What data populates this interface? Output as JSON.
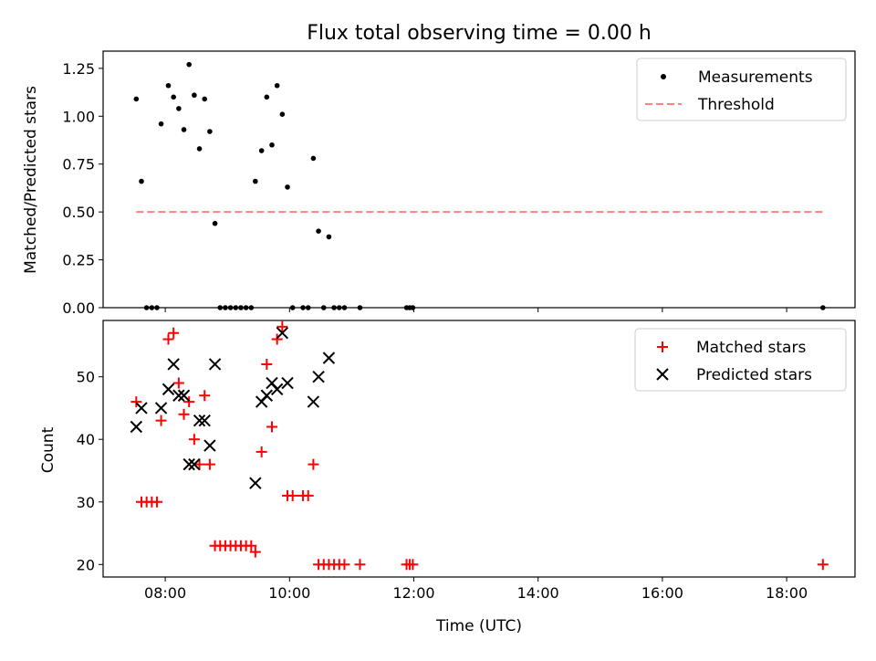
{
  "chart_data": [
    {
      "type": "scatter",
      "title": "Flux total observing time = 0.00 h",
      "xlabel": "",
      "ylabel": "Matched/Predicted stars",
      "xlim": [
        "07:00",
        "19:06"
      ],
      "ylim": [
        0,
        1.34
      ],
      "xticks": [
        "08:00",
        "10:00",
        "12:00",
        "14:00",
        "16:00",
        "18:00"
      ],
      "yticks": [
        "0.00",
        "0.25",
        "0.50",
        "0.75",
        "1.00",
        "1.25"
      ],
      "legend": {
        "placement": "top-right",
        "entries": [
          "Measurements",
          "Threshold"
        ]
      },
      "threshold": {
        "name": "Threshold",
        "y": 0.5,
        "x": [
          "07:32",
          "18:35"
        ],
        "color": "#ff8080"
      },
      "series": [
        {
          "name": "Measurements",
          "marker": "dot",
          "color": "#000000",
          "points": [
            {
              "x": "07:32",
              "y": 1.09
            },
            {
              "x": "07:37",
              "y": 0.66
            },
            {
              "x": "07:42",
              "y": 0.0
            },
            {
              "x": "07:47",
              "y": 0.0
            },
            {
              "x": "07:52",
              "y": 0.0
            },
            {
              "x": "07:56",
              "y": 0.96
            },
            {
              "x": "08:03",
              "y": 1.16
            },
            {
              "x": "08:08",
              "y": 1.1
            },
            {
              "x": "08:13",
              "y": 1.04
            },
            {
              "x": "08:18",
              "y": 0.93
            },
            {
              "x": "08:23",
              "y": 1.27
            },
            {
              "x": "08:28",
              "y": 1.11
            },
            {
              "x": "08:33",
              "y": 0.83
            },
            {
              "x": "08:38",
              "y": 1.09
            },
            {
              "x": "08:43",
              "y": 0.92
            },
            {
              "x": "08:48",
              "y": 0.44
            },
            {
              "x": "08:53",
              "y": 0.0
            },
            {
              "x": "08:58",
              "y": 0.0
            },
            {
              "x": "09:03",
              "y": 0.0
            },
            {
              "x": "09:08",
              "y": 0.0
            },
            {
              "x": "09:13",
              "y": 0.0
            },
            {
              "x": "09:18",
              "y": 0.0
            },
            {
              "x": "09:23",
              "y": 0.0
            },
            {
              "x": "09:27",
              "y": 0.66
            },
            {
              "x": "09:33",
              "y": 0.82
            },
            {
              "x": "09:38",
              "y": 1.1
            },
            {
              "x": "09:43",
              "y": 0.85
            },
            {
              "x": "09:48",
              "y": 1.16
            },
            {
              "x": "09:53",
              "y": 1.01
            },
            {
              "x": "09:58",
              "y": 0.63
            },
            {
              "x": "10:03",
              "y": 0.0
            },
            {
              "x": "10:13",
              "y": 0.0
            },
            {
              "x": "10:18",
              "y": 0.0
            },
            {
              "x": "10:23",
              "y": 0.78
            },
            {
              "x": "10:28",
              "y": 0.4
            },
            {
              "x": "10:33",
              "y": 0.0
            },
            {
              "x": "10:38",
              "y": 0.37
            },
            {
              "x": "10:43",
              "y": 0.0
            },
            {
              "x": "10:48",
              "y": 0.0
            },
            {
              "x": "10:53",
              "y": 0.0
            },
            {
              "x": "11:08",
              "y": 0.0
            },
            {
              "x": "11:53",
              "y": 0.0
            },
            {
              "x": "11:56",
              "y": 0.0
            },
            {
              "x": "11:59",
              "y": 0.0
            },
            {
              "x": "18:35",
              "y": 0.0
            }
          ]
        }
      ]
    },
    {
      "type": "scatter",
      "title": "",
      "xlabel": "Time (UTC)",
      "ylabel": "Count",
      "xlim": [
        "07:00",
        "19:06"
      ],
      "ylim": [
        18,
        59
      ],
      "xticks": [
        "08:00",
        "10:00",
        "12:00",
        "14:00",
        "16:00",
        "18:00"
      ],
      "yticks": [
        "20",
        "30",
        "40",
        "50"
      ],
      "legend": {
        "placement": "top-right",
        "entries": [
          "Matched stars",
          "Predicted stars"
        ]
      },
      "series": [
        {
          "name": "Matched stars",
          "marker": "plus",
          "color": "#ff0000",
          "points": [
            {
              "x": "07:32",
              "y": 46
            },
            {
              "x": "07:37",
              "y": 30
            },
            {
              "x": "07:42",
              "y": 30
            },
            {
              "x": "07:47",
              "y": 30
            },
            {
              "x": "07:52",
              "y": 30
            },
            {
              "x": "07:56",
              "y": 43
            },
            {
              "x": "08:03",
              "y": 56
            },
            {
              "x": "08:08",
              "y": 57
            },
            {
              "x": "08:13",
              "y": 49
            },
            {
              "x": "08:18",
              "y": 44
            },
            {
              "x": "08:23",
              "y": 46
            },
            {
              "x": "08:28",
              "y": 40
            },
            {
              "x": "08:33",
              "y": 36
            },
            {
              "x": "08:38",
              "y": 47
            },
            {
              "x": "08:43",
              "y": 36
            },
            {
              "x": "08:48",
              "y": 23
            },
            {
              "x": "08:53",
              "y": 23
            },
            {
              "x": "08:58",
              "y": 23
            },
            {
              "x": "09:03",
              "y": 23
            },
            {
              "x": "09:08",
              "y": 23
            },
            {
              "x": "09:13",
              "y": 23
            },
            {
              "x": "09:18",
              "y": 23
            },
            {
              "x": "09:23",
              "y": 23
            },
            {
              "x": "09:27",
              "y": 22
            },
            {
              "x": "09:33",
              "y": 38
            },
            {
              "x": "09:38",
              "y": 52
            },
            {
              "x": "09:43",
              "y": 42
            },
            {
              "x": "09:48",
              "y": 56
            },
            {
              "x": "09:53",
              "y": 58
            },
            {
              "x": "09:58",
              "y": 31
            },
            {
              "x": "10:03",
              "y": 31
            },
            {
              "x": "10:13",
              "y": 31
            },
            {
              "x": "10:18",
              "y": 31
            },
            {
              "x": "10:23",
              "y": 36
            },
            {
              "x": "10:28",
              "y": 20
            },
            {
              "x": "10:33",
              "y": 20
            },
            {
              "x": "10:38",
              "y": 20
            },
            {
              "x": "10:43",
              "y": 20
            },
            {
              "x": "10:48",
              "y": 20
            },
            {
              "x": "10:53",
              "y": 20
            },
            {
              "x": "11:08",
              "y": 20
            },
            {
              "x": "11:53",
              "y": 20
            },
            {
              "x": "11:56",
              "y": 20
            },
            {
              "x": "11:59",
              "y": 20
            },
            {
              "x": "18:35",
              "y": 20
            }
          ]
        },
        {
          "name": "Predicted stars",
          "marker": "cross",
          "color": "#000000",
          "points": [
            {
              "x": "07:32",
              "y": 42
            },
            {
              "x": "07:37",
              "y": 45
            },
            {
              "x": "07:56",
              "y": 45
            },
            {
              "x": "08:03",
              "y": 48
            },
            {
              "x": "08:08",
              "y": 52
            },
            {
              "x": "08:13",
              "y": 47
            },
            {
              "x": "08:18",
              "y": 47
            },
            {
              "x": "08:23",
              "y": 36
            },
            {
              "x": "08:28",
              "y": 36
            },
            {
              "x": "08:33",
              "y": 43
            },
            {
              "x": "08:38",
              "y": 43
            },
            {
              "x": "08:43",
              "y": 39
            },
            {
              "x": "08:48",
              "y": 52
            },
            {
              "x": "09:27",
              "y": 33
            },
            {
              "x": "09:33",
              "y": 46
            },
            {
              "x": "09:38",
              "y": 47
            },
            {
              "x": "09:43",
              "y": 49
            },
            {
              "x": "09:48",
              "y": 48
            },
            {
              "x": "09:53",
              "y": 57
            },
            {
              "x": "09:58",
              "y": 49
            },
            {
              "x": "10:23",
              "y": 46
            },
            {
              "x": "10:28",
              "y": 50
            },
            {
              "x": "10:38",
              "y": 53
            }
          ]
        }
      ]
    }
  ]
}
